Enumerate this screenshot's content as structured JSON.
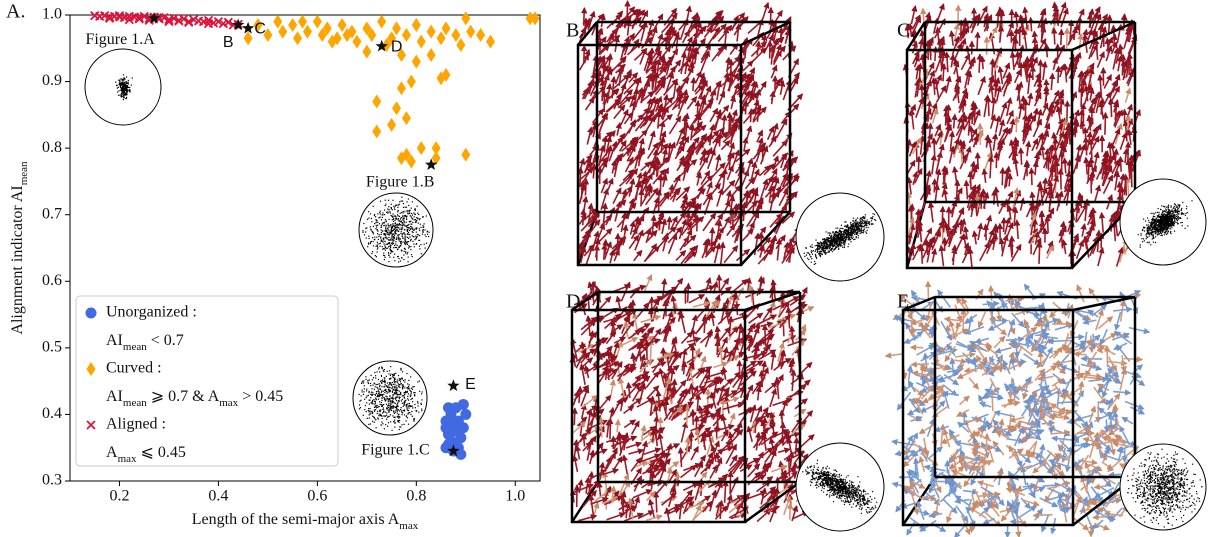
{
  "chart_data": {
    "type": "scatter",
    "panel_label": "A.",
    "xlabel": [
      {
        "text": "Length of the semi-major axis A"
      },
      {
        "subscript": "max"
      }
    ],
    "ylabel": [
      {
        "text": "Alignment indicator AI"
      },
      {
        "subscript": "mean"
      }
    ],
    "xlim": [
      0.1,
      1.05
    ],
    "ylim": [
      0.3,
      1.0
    ],
    "xticks": [
      0.2,
      0.4,
      0.6,
      0.8,
      {
        "value": 1,
        "label": "1.0"
      }
    ],
    "yticks": [
      0.3,
      0.4,
      0.5,
      0.6,
      0.7,
      0.8,
      0.9,
      {
        "value": 1,
        "label": "1.0"
      }
    ],
    "series": [
      {
        "name": "Unorganized :",
        "color": "#4169e1",
        "marker": "circle",
        "description": [
          {
            "text": "AI"
          },
          {
            "subscript": "mean"
          },
          {
            "text": " < 0.7"
          }
        ],
        "x": [
          0.86,
          0.87,
          0.88,
          0.865,
          0.875,
          0.89,
          0.86,
          0.87,
          0.885,
          0.88,
          0.895,
          0.865,
          0.875,
          0.89,
          0.86,
          0.88,
          0.87,
          0.9,
          0.885,
          0.865,
          0.895
        ],
        "values": [
          0.35,
          0.36,
          0.355,
          0.37,
          0.38,
          0.365,
          0.39,
          0.4,
          0.39,
          0.41,
          0.415,
          0.41,
          0.345,
          0.34,
          0.38,
          0.375,
          0.385,
          0.4,
          0.35,
          0.355,
          0.38
        ]
      },
      {
        "name": "Curved :",
        "color": "#ffa500",
        "marker": "diamond",
        "description": [
          {
            "text": "AI"
          },
          {
            "subscript": "mean"
          },
          {
            "text": " ⩾ 0.7 & A"
          },
          {
            "subscript": "max"
          },
          {
            "text": " > 0.45"
          }
        ],
        "x": [
          0.46,
          0.48,
          0.5,
          0.52,
          0.53,
          0.55,
          0.56,
          0.58,
          0.6,
          0.61,
          0.62,
          0.64,
          0.65,
          0.67,
          0.68,
          0.7,
          0.71,
          0.73,
          0.75,
          0.76,
          0.78,
          0.8,
          0.81,
          0.83,
          0.85,
          0.86,
          0.88,
          0.89,
          0.91,
          0.93,
          0.95,
          0.9,
          1.03,
          1.04,
          0.7,
          0.77,
          0.57,
          0.63,
          0.74,
          0.66,
          0.77,
          0.72,
          0.79,
          0.76,
          0.8,
          0.83,
          0.85,
          0.78,
          0.72,
          0.75,
          0.78,
          0.77,
          0.79,
          0.81,
          0.84,
          0.84,
          0.9,
          0.86
        ],
        "values": [
          0.965,
          0.985,
          0.97,
          0.99,
          0.975,
          0.985,
          0.965,
          0.975,
          0.99,
          0.97,
          0.98,
          0.965,
          0.985,
          0.975,
          0.96,
          0.98,
          0.97,
          0.99,
          0.965,
          0.98,
          0.97,
          0.985,
          0.96,
          0.975,
          0.965,
          0.98,
          0.97,
          0.955,
          0.975,
          0.97,
          0.96,
          0.995,
          0.995,
          0.995,
          0.945,
          0.94,
          0.99,
          0.96,
          0.955,
          0.97,
          0.89,
          0.87,
          0.9,
          0.86,
          0.93,
          0.94,
          0.905,
          0.845,
          0.825,
          0.835,
          0.79,
          0.785,
          0.78,
          0.8,
          0.8,
          0.785,
          0.79,
          0.91
        ]
      },
      {
        "name": "Aligned :",
        "color": "#dc143c",
        "marker": "cross",
        "description": [
          {
            "text": "A"
          },
          {
            "subscript": "max"
          },
          {
            "text": " ⩽ 0.45"
          }
        ],
        "x": [
          0.15,
          0.16,
          0.17,
          0.18,
          0.19,
          0.2,
          0.21,
          0.22,
          0.23,
          0.24,
          0.25,
          0.26,
          0.27,
          0.28,
          0.29,
          0.3,
          0.31,
          0.32,
          0.33,
          0.34,
          0.35,
          0.36,
          0.37,
          0.38,
          0.39,
          0.4,
          0.41,
          0.42,
          0.43,
          0.44,
          0.18,
          0.22,
          0.26,
          0.3,
          0.34,
          0.38,
          0.2,
          0.24,
          0.28,
          0.32
        ],
        "values": [
          0.999,
          0.998,
          0.999,
          0.997,
          0.998,
          0.999,
          0.996,
          0.998,
          0.997,
          0.996,
          0.998,
          0.995,
          0.997,
          0.994,
          0.996,
          0.993,
          0.995,
          0.992,
          0.994,
          0.99,
          0.993,
          0.991,
          0.99,
          0.992,
          0.988,
          0.99,
          0.987,
          0.989,
          0.985,
          0.986,
          0.995,
          0.993,
          0.992,
          0.99,
          0.989,
          0.987,
          0.997,
          0.994,
          0.996,
          0.991
        ]
      }
    ],
    "highlighted": {
      "x": [
        0.27,
        0.44,
        0.46,
        0.73,
        0.83,
        0.875,
        0.875
      ],
      "values": [
        0.995,
        0.985,
        0.98,
        0.953,
        0.775,
        0.443,
        0.345
      ],
      "labels": [
        "Figure 1.A",
        "B",
        "C",
        "D",
        "Figure 1.B",
        "E",
        "Figure 1.C"
      ]
    }
  },
  "panels": [
    {
      "label": "B."
    },
    {
      "label": "C."
    },
    {
      "label": "D."
    },
    {
      "label": "E."
    }
  ]
}
